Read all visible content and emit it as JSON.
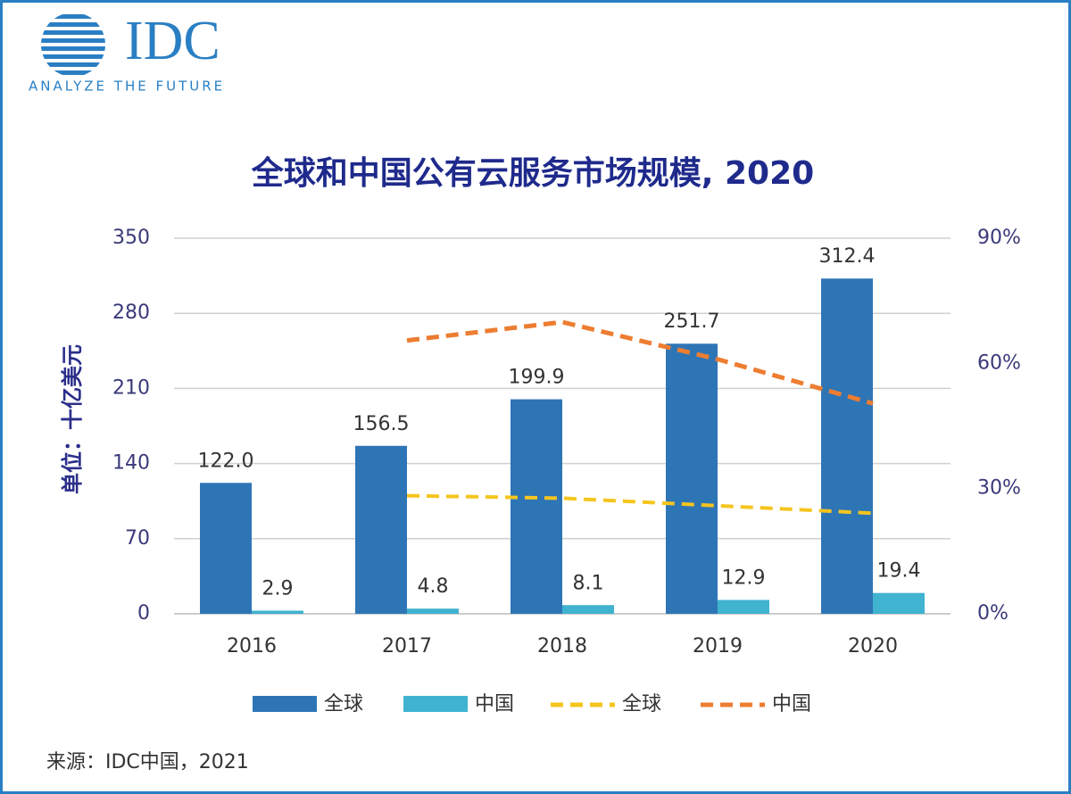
{
  "logo": {
    "name": "IDC",
    "tagline": "ANALYZE THE FUTURE"
  },
  "source": "来源：IDC中国，2021",
  "chart_data": {
    "type": "bar",
    "title": "全球和中国公有云服务市场规模, 2020",
    "y_label": "单位：十亿美元",
    "categories": [
      "2016",
      "2017",
      "2018",
      "2019",
      "2020"
    ],
    "series": [
      {
        "name": "全球",
        "type": "bar",
        "color": "#2e75b6",
        "values": [
          122.0,
          156.5,
          199.9,
          251.7,
          312.4
        ],
        "value_labels": [
          "122.0",
          "156.5",
          "199.9",
          "251.7",
          "312.4"
        ]
      },
      {
        "name": "中国",
        "type": "bar",
        "color": "#3fb3d0",
        "values": [
          2.9,
          4.8,
          8.1,
          12.9,
          19.4
        ]
      },
      {
        "name": "全球",
        "type": "line",
        "axis": "y2",
        "color": "#f5c51e",
        "values": [
          null,
          28.3,
          27.7,
          25.9,
          24.1
        ]
      },
      {
        "name": "中国",
        "type": "line",
        "axis": "y2",
        "color": "#ed7d31",
        "values": [
          null,
          65.5,
          69.9,
          61,
          50.4
        ]
      }
    ],
    "ylim": [
      0,
      350
    ],
    "yticks": [
      0,
      70,
      140,
      210,
      280,
      350
    ],
    "y2lim": [
      0,
      90
    ],
    "y2ticks": [
      {
        "value": 0,
        "label": "0%"
      },
      {
        "value": 30,
        "label": "30%"
      },
      {
        "value": 60,
        "label": "60%"
      },
      {
        "value": 90,
        "label": "90%"
      }
    ],
    "grid": true
  }
}
